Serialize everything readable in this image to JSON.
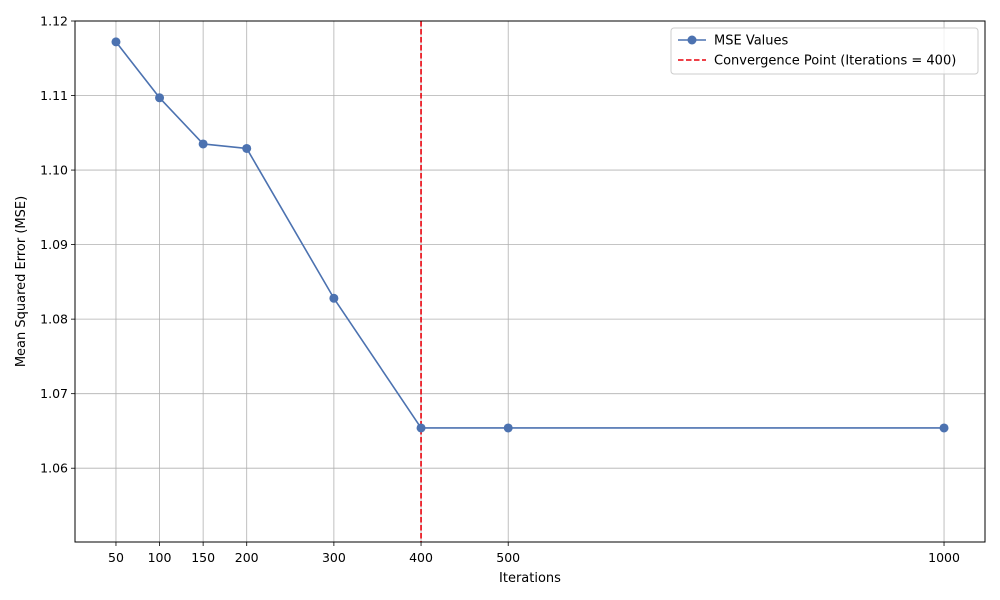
{
  "chart_data": {
    "type": "line",
    "title": "",
    "xlabel": "Iterations",
    "ylabel": "Mean Squared Error (MSE)",
    "x": [
      50,
      100,
      150,
      200,
      300,
      400,
      500,
      1000
    ],
    "xticks": [
      "50",
      "100",
      "150",
      "200",
      "300",
      "400",
      "500",
      "1000"
    ],
    "yticks": [
      "1.06",
      "1.07",
      "1.08",
      "1.09",
      "1.10",
      "1.11",
      "1.12"
    ],
    "xlim": [
      3,
      1047
    ],
    "ylim": [
      1.0501,
      1.12
    ],
    "grid": true,
    "series": [
      {
        "name": "MSE Values",
        "color": "#4c72b0",
        "marker": "circle",
        "values": [
          1.1172,
          1.1097,
          1.1035,
          1.1029,
          1.0828,
          1.0654,
          1.0654,
          1.0654
        ]
      }
    ],
    "vline": {
      "x": 400,
      "name": "Convergence Point (Iterations = 400)",
      "color": "#e8000b",
      "style": "dashed"
    },
    "legend": {
      "position": "top-right",
      "entries": [
        "MSE Values",
        "Convergence Point (Iterations = 400)"
      ]
    }
  }
}
